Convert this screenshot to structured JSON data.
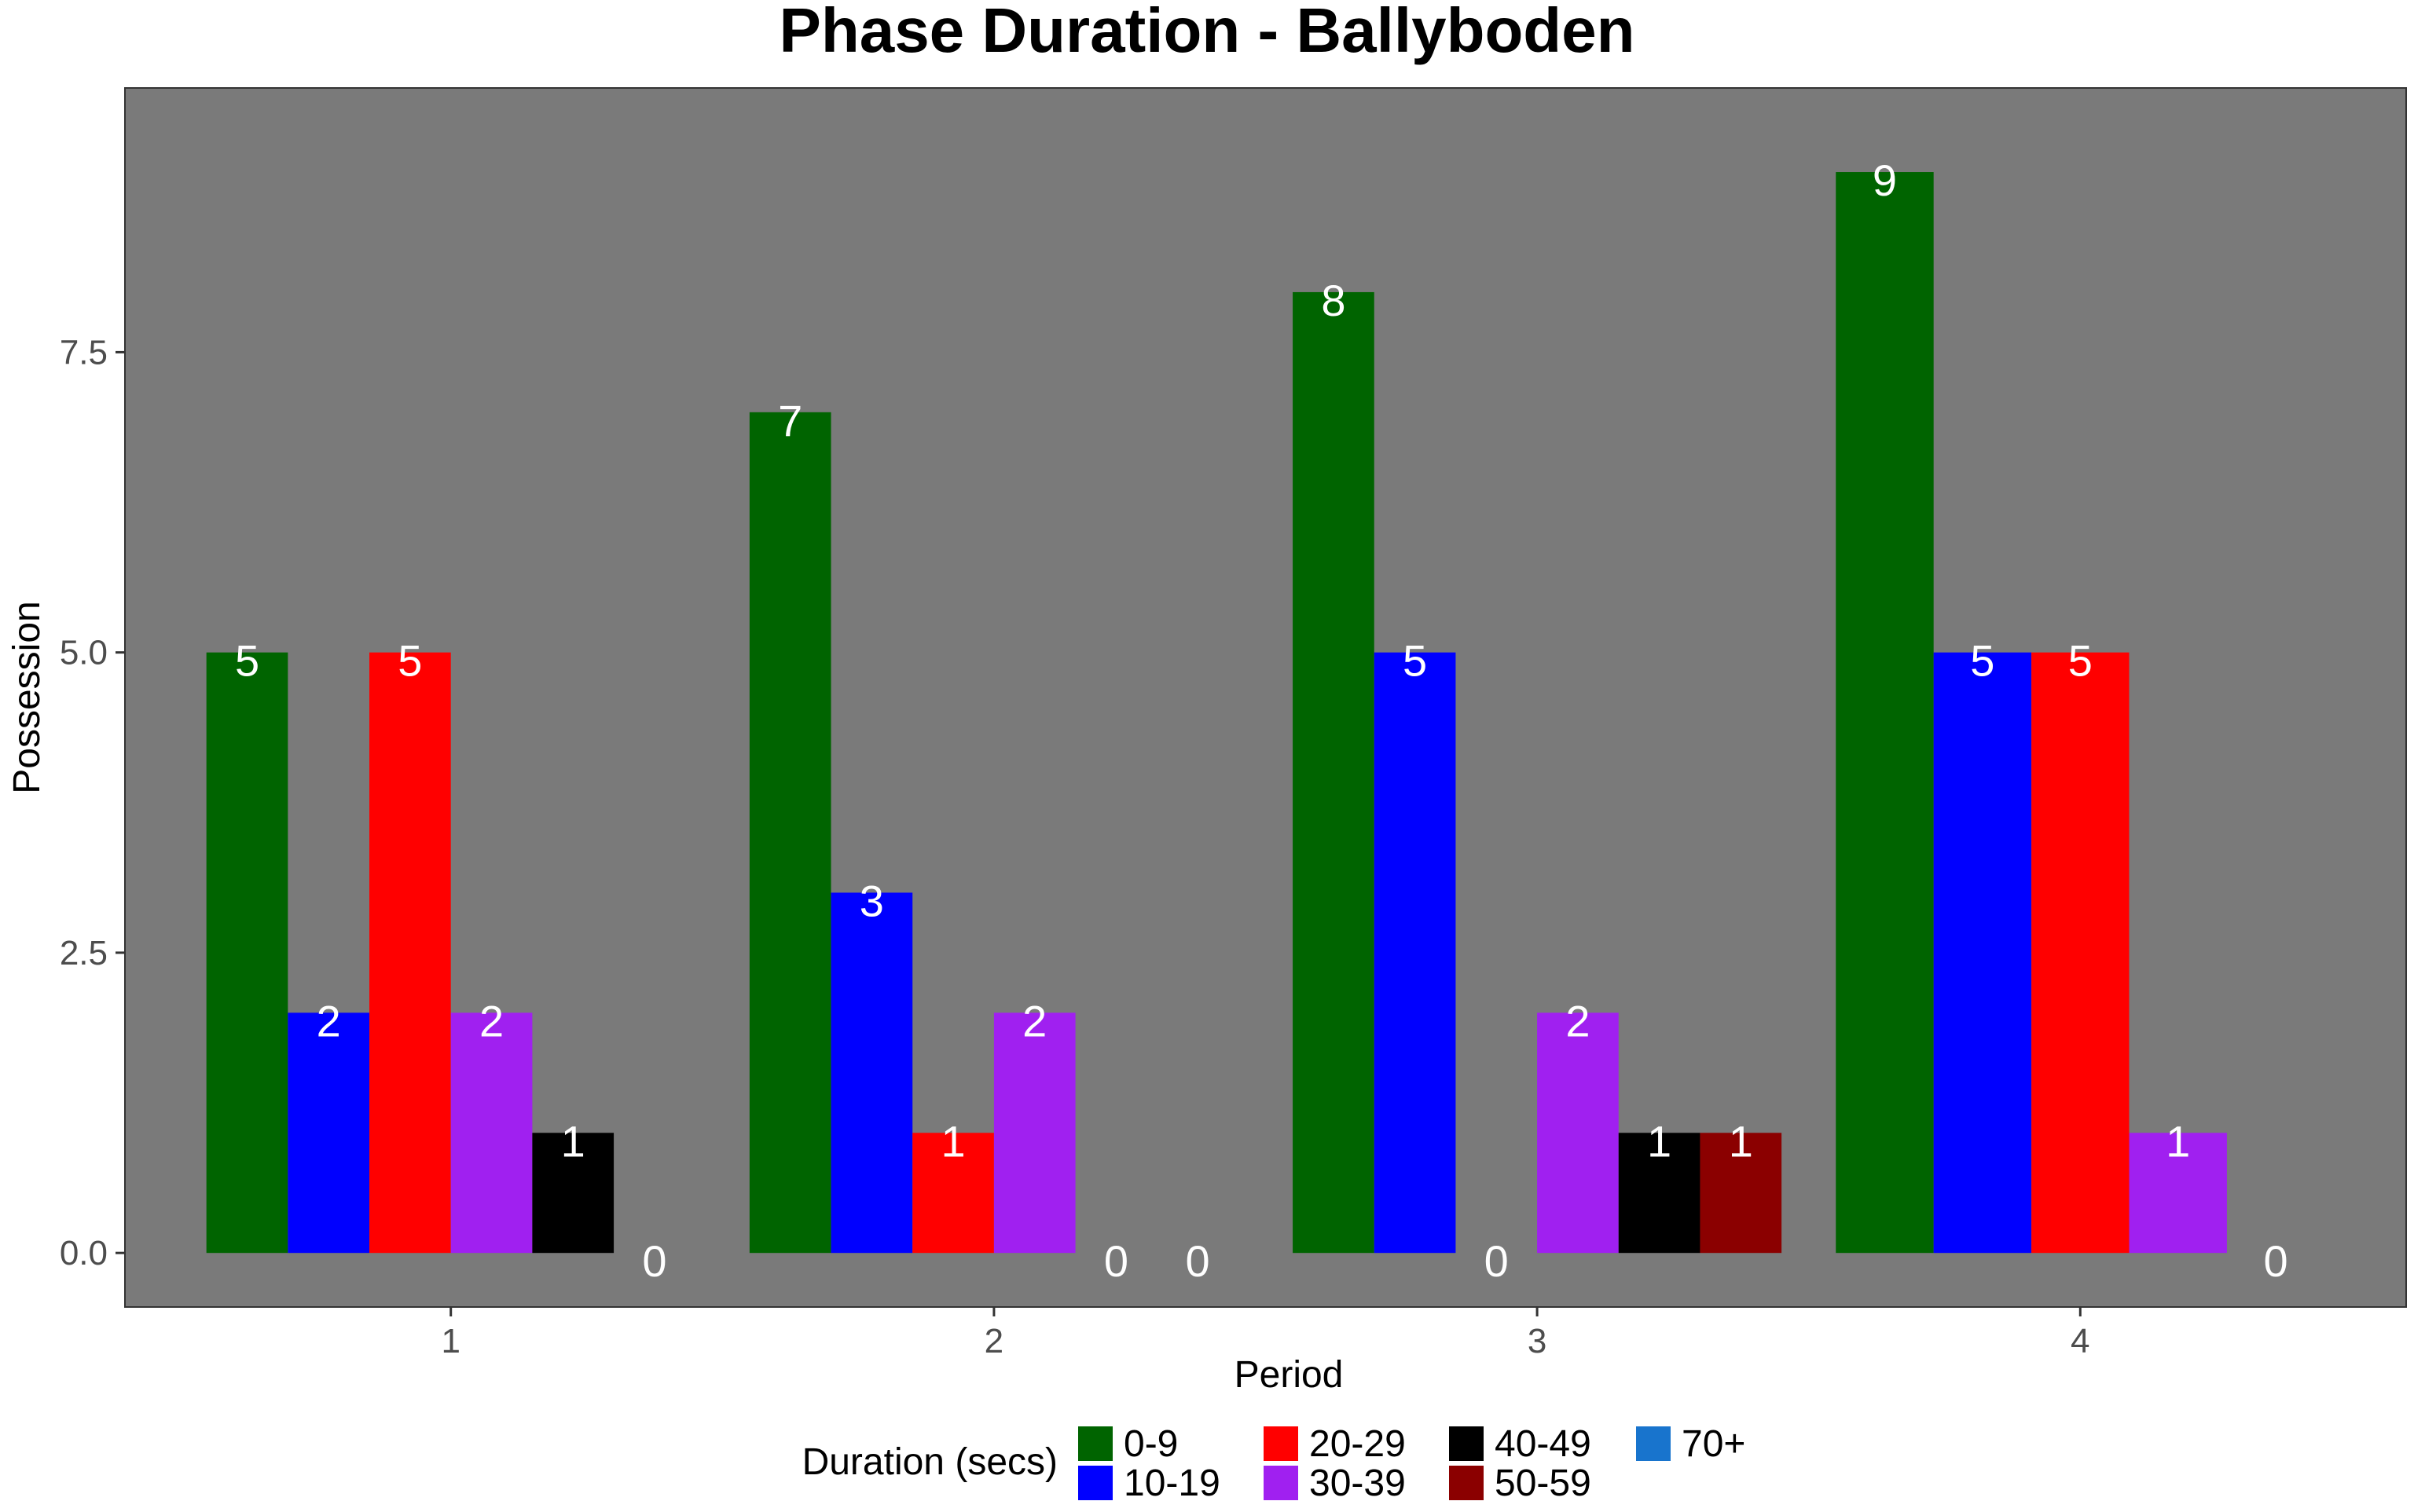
{
  "chart_data": {
    "type": "bar",
    "title": "Phase Duration - Ballyboden",
    "xlabel": "Period",
    "ylabel": "Possession",
    "ylim": [
      -0.45,
      9.7
    ],
    "yticks": [
      0.0,
      2.5,
      5.0,
      7.5
    ],
    "ytick_labels": [
      "0.0",
      "2.5",
      "5.0",
      "7.5"
    ],
    "categories": [
      "1",
      "2",
      "3",
      "4"
    ],
    "background": "#7a7a7a",
    "label_color": "#ffffff",
    "legend": {
      "title": "Duration (secs)",
      "position": "bottom",
      "entries": [
        {
          "label": "0-9",
          "color": "#006400"
        },
        {
          "label": "10-19",
          "color": "#0000ff"
        },
        {
          "label": "20-29",
          "color": "#ff0000"
        },
        {
          "label": "30-39",
          "color": "#a020f0"
        },
        {
          "label": "40-49",
          "color": "#000000"
        },
        {
          "label": "50-59",
          "color": "#8b0000"
        },
        {
          "label": "70+",
          "color": "#1874cd"
        }
      ]
    },
    "groups": [
      {
        "period": "1",
        "bars": [
          {
            "duration": "0-9",
            "value": 5
          },
          {
            "duration": "10-19",
            "value": 2
          },
          {
            "duration": "20-29",
            "value": 5
          },
          {
            "duration": "30-39",
            "value": 2
          },
          {
            "duration": "40-49",
            "value": 1
          },
          {
            "duration": "70+",
            "value": 0
          }
        ]
      },
      {
        "period": "2",
        "bars": [
          {
            "duration": "0-9",
            "value": 7
          },
          {
            "duration": "10-19",
            "value": 3
          },
          {
            "duration": "20-29",
            "value": 1
          },
          {
            "duration": "30-39",
            "value": 2
          },
          {
            "duration": "40-49",
            "value": 0
          },
          {
            "duration": "70+",
            "value": 0
          }
        ]
      },
      {
        "period": "3",
        "bars": [
          {
            "duration": "0-9",
            "value": 8
          },
          {
            "duration": "10-19",
            "value": 5
          },
          {
            "duration": "20-29",
            "value": 0
          },
          {
            "duration": "30-39",
            "value": 2
          },
          {
            "duration": "40-49",
            "value": 1
          },
          {
            "duration": "50-59",
            "value": 1
          }
        ]
      },
      {
        "period": "4",
        "bars": [
          {
            "duration": "0-9",
            "value": 9
          },
          {
            "duration": "10-19",
            "value": 5
          },
          {
            "duration": "20-29",
            "value": 5
          },
          {
            "duration": "30-39",
            "value": 1
          },
          {
            "duration": "70+",
            "value": 0
          }
        ]
      }
    ]
  }
}
